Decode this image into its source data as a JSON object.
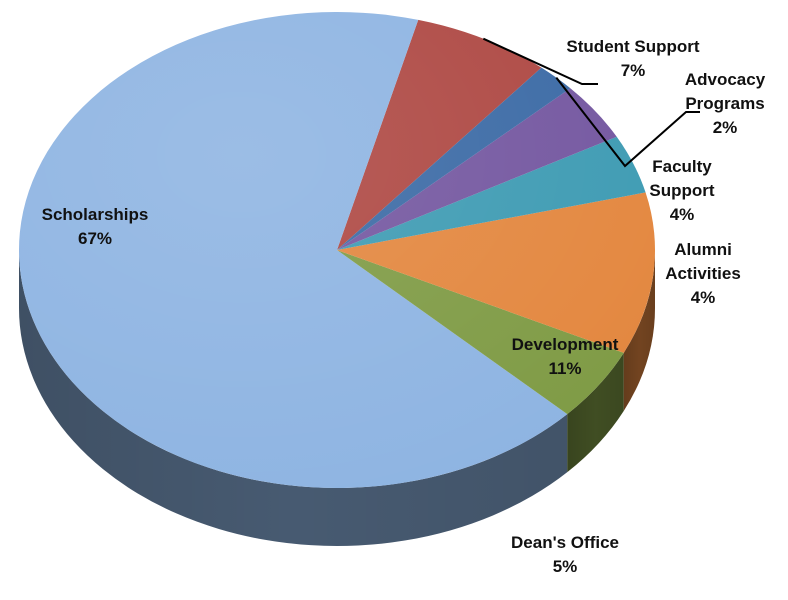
{
  "chart_data": {
    "type": "pie",
    "title": "",
    "three_d": true,
    "start_angle_deg": -50,
    "direction": "counterclockwise",
    "slices": [
      {
        "label": "Student Support",
        "label_lines": [
          "Student Support",
          "7%"
        ],
        "percent_text": "7%",
        "value": 7,
        "color": "#ae4843"
      },
      {
        "label": "Scholarships",
        "label_lines": [
          "Scholarships",
          "67%"
        ],
        "percent_text": "67%",
        "value": 67,
        "color": "#8eb4e2"
      },
      {
        "label": "Dean's Office",
        "label_lines": [
          "Dean's Office",
          "5%"
        ],
        "percent_text": "5%",
        "value": 5,
        "color": "#7f9b45"
      },
      {
        "label": "Development",
        "label_lines": [
          "Development",
          "11%"
        ],
        "percent_text": "11%",
        "value": 11,
        "color": "#e3873f"
      },
      {
        "label": "Alumni Activities",
        "label_lines": [
          "Alumni",
          "Activities",
          "4%"
        ],
        "percent_text": "4%",
        "value": 4,
        "color": "#3e9bb3"
      },
      {
        "label": "Faculty Support",
        "label_lines": [
          "Faculty",
          "Support",
          "4%"
        ],
        "percent_text": "4%",
        "value": 4,
        "color": "#7457a0"
      },
      {
        "label": "Advocacy Programs",
        "label_lines": [
          "Advocacy",
          "Programs",
          "2%"
        ],
        "percent_text": "2%",
        "value": 2,
        "color": "#3b6aa5"
      }
    ]
  }
}
